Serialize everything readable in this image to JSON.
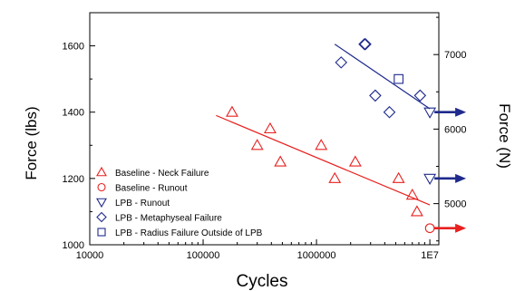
{
  "chart_data": {
    "type": "scatter",
    "xlabel": "Cycles",
    "ylabel": "Force (lbs)",
    "y2label": "Force (N)",
    "xscale": "log",
    "xlim": [
      10000,
      12000000
    ],
    "ylim": [
      1000,
      1700
    ],
    "y2lim": [
      4448,
      7562
    ],
    "x_ticks": [
      10000,
      100000,
      1000000,
      10000000
    ],
    "x_tick_labels": [
      "10000",
      "100000",
      "1000000",
      "1E7"
    ],
    "y_ticks": [
      1000,
      1200,
      1400,
      1600
    ],
    "y_tick_labels": [
      "1000",
      "1200",
      "1400",
      "1600"
    ],
    "y2_ticks": [
      5000,
      6000,
      7000
    ],
    "y2_tick_labels": [
      "5000",
      "6000",
      "7000"
    ],
    "legend_position": "bottom-left",
    "colors": {
      "baseline": "#e8201e",
      "lpb": "#1f2a8c"
    },
    "series": [
      {
        "name": "Baseline - Neck Failure",
        "marker": "triangle-up",
        "color": "#e8201e",
        "points": [
          [
            180000,
            1400
          ],
          [
            300000,
            1300
          ],
          [
            390000,
            1350
          ],
          [
            480000,
            1250
          ],
          [
            1100000,
            1300
          ],
          [
            1450000,
            1200
          ],
          [
            2200000,
            1250
          ],
          [
            5300000,
            1200
          ],
          [
            7000000,
            1150
          ],
          [
            7700000,
            1100
          ]
        ]
      },
      {
        "name": "Baseline - Runout",
        "marker": "circle",
        "color": "#e8201e",
        "runout": true,
        "points": [
          [
            10000000,
            1050
          ]
        ]
      },
      {
        "name": "LPB - Runout",
        "marker": "triangle-down",
        "color": "#1f2a8c",
        "runout": true,
        "points": [
          [
            10000000,
            1400
          ],
          [
            10000000,
            1200
          ]
        ]
      },
      {
        "name": "LPB - Metaphyseal Failure",
        "marker": "diamond",
        "color": "#1f2a8c",
        "points": [
          [
            1650000,
            1550
          ],
          [
            2650000,
            1605
          ],
          [
            2700000,
            1605
          ],
          [
            3300000,
            1450
          ],
          [
            4400000,
            1400
          ],
          [
            8200000,
            1450
          ]
        ]
      },
      {
        "name": "LPB - Radius Failure Outside of LPB",
        "marker": "square",
        "color": "#1f2a8c",
        "points": [
          [
            5300000,
            1500
          ]
        ]
      }
    ],
    "trendlines": [
      {
        "series": "baseline",
        "color": "#e8201e",
        "x": [
          130000,
          10000000
        ],
        "y": [
          1390,
          1120
        ]
      },
      {
        "series": "lpb",
        "color": "#1f2a8c",
        "x": [
          1450000,
          10000000
        ],
        "y": [
          1605,
          1410
        ]
      }
    ]
  }
}
